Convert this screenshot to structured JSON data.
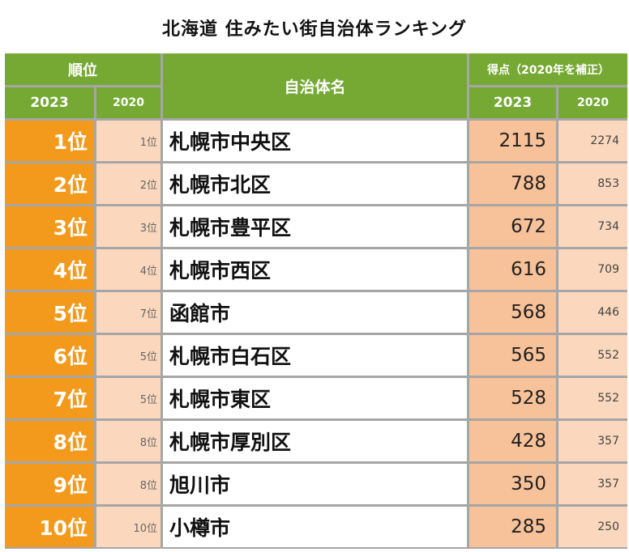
{
  "title": "北海道 住みたい街自治体ランキング",
  "header": {
    "rank": "順位",
    "rank_2023": "2023",
    "rank_2020": "2020",
    "name": "自治体名",
    "score": "得点（2020年を補正）",
    "score_2023": "2023",
    "score_2020": "2020"
  },
  "rows": [
    {
      "rank_2023": "1位",
      "rank_2020": "1位",
      "name": "札幌市中央区",
      "score_2023": "2115",
      "score_2020": "2274"
    },
    {
      "rank_2023": "2位",
      "rank_2020": "2位",
      "name": "札幌市北区",
      "score_2023": "788",
      "score_2020": "853"
    },
    {
      "rank_2023": "3位",
      "rank_2020": "3位",
      "name": "札幌市豊平区",
      "score_2023": "672",
      "score_2020": "734"
    },
    {
      "rank_2023": "4位",
      "rank_2020": "4位",
      "name": "札幌市西区",
      "score_2023": "616",
      "score_2020": "709"
    },
    {
      "rank_2023": "5位",
      "rank_2020": "7位",
      "name": "函館市",
      "score_2023": "568",
      "score_2020": "446"
    },
    {
      "rank_2023": "6位",
      "rank_2020": "5位",
      "name": "札幌市白石区",
      "score_2023": "565",
      "score_2020": "552"
    },
    {
      "rank_2023": "7位",
      "rank_2020": "5位",
      "name": "札幌市東区",
      "score_2023": "528",
      "score_2020": "552"
    },
    {
      "rank_2023": "8位",
      "rank_2020": "8位",
      "name": "札幌市厚別区",
      "score_2023": "428",
      "score_2020": "357"
    },
    {
      "rank_2023": "9位",
      "rank_2020": "8位",
      "name": "旭川市",
      "score_2023": "350",
      "score_2020": "357"
    },
    {
      "rank_2023": "10位",
      "rank_2020": "10位",
      "name": "小樽市",
      "score_2023": "285",
      "score_2020": "250"
    }
  ]
}
